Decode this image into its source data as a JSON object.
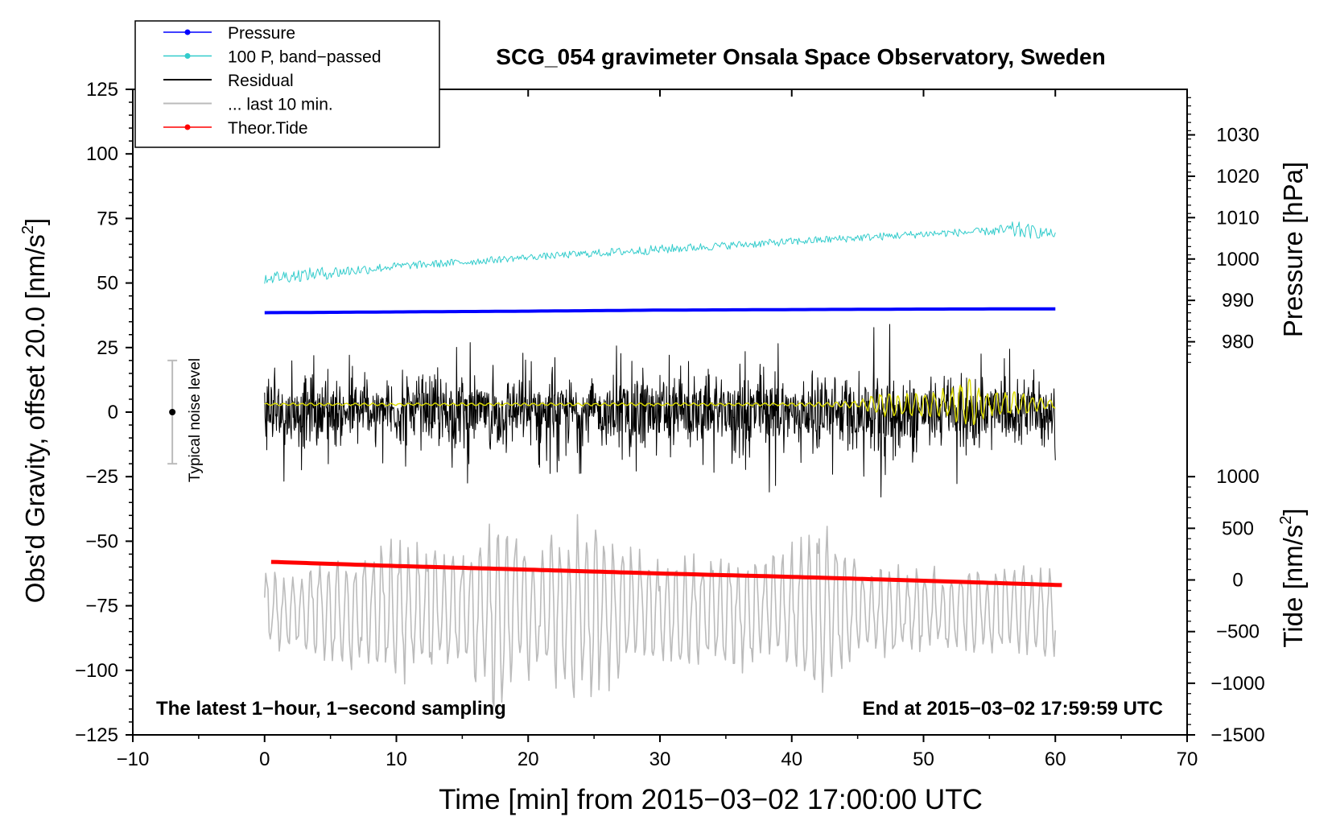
{
  "chart_data": {
    "type": "line",
    "title": "SCG_054 gravimeter Onsala Space Observatory, Sweden",
    "xlabel": "Time [min] from 2015−03−02 17:00:00 UTC",
    "ylabel": "Obs'd Gravity, offset 20.0 [nm/s",
    "ylabel_sup": "2",
    "ylabel_end": "]",
    "right_label_pressure": "Pressure [hPa]",
    "right_label_tide": "Tide [nm/s",
    "right_label_tide_sup": "2",
    "right_label_tide_end": "]",
    "xlim": [
      -10,
      70
    ],
    "ylim": [
      -125,
      125
    ],
    "x_ticks": [
      "−10",
      "0",
      "10",
      "20",
      "30",
      "40",
      "50",
      "60",
      "70"
    ],
    "y_ticks": [
      "125",
      "100",
      "75",
      "50",
      "25",
      "0",
      "−25",
      "−50",
      "−75",
      "−100",
      "−125"
    ],
    "pressure_axis": {
      "ticks": [
        "1030",
        "1020",
        "1010",
        "1000",
        "990",
        "980"
      ],
      "values": [
        1030,
        1020,
        1010,
        1000,
        990,
        980
      ],
      "ref_gravity": [
        0,
        125
      ],
      "ref_hpa": [
        963,
        1041
      ]
    },
    "tide_axis": {
      "ticks": [
        "1000",
        "500",
        "0",
        "−500",
        "−1000",
        "−1500"
      ],
      "values": [
        1000,
        500,
        0,
        -500,
        -1000,
        -1500
      ],
      "ref_gravity": [
        -25,
        -125
      ],
      "ref_nms2": [
        1000,
        -1500
      ]
    },
    "annotation_left": "The latest 1−hour, 1−second sampling",
    "annotation_right": "End at 2015−03−02 17:59:59 UTC",
    "noise_label": "Typical noise level",
    "noise_bar": {
      "x": -7,
      "y_center": 0,
      "y_min": -20,
      "y_max": 20
    },
    "legend": [
      {
        "label": "Pressure",
        "color": "#0000ff",
        "marker": true
      },
      {
        "label": "100 P, band−passed",
        "color": "#33cccc",
        "marker": true
      },
      {
        "label": "Residual",
        "color": "#000000",
        "marker": false
      },
      {
        "label": "... last 10 min.",
        "color": "#bbbbbb",
        "marker": false
      },
      {
        "label": "Theor.Tide",
        "color": "#ff0000",
        "marker": true
      }
    ],
    "series": [
      {
        "name": "Pressure",
        "color": "#0000ff",
        "x": [
          0,
          10,
          20,
          30,
          40,
          50,
          60
        ],
        "y": [
          38.5,
          38.8,
          39.1,
          39.5,
          39.7,
          39.9,
          40.0
        ]
      },
      {
        "name": "100 P, band-passed",
        "color": "#33cccc",
        "x": [
          0,
          5,
          10,
          15,
          20,
          25,
          30,
          35,
          40,
          45,
          50,
          55,
          57,
          60
        ],
        "y": [
          52,
          54,
          56.5,
          58,
          60,
          61.5,
          63,
          64.5,
          66,
          67.5,
          69,
          70,
          70.5,
          69
        ],
        "amplitude": [
          2.5,
          2.5,
          1.5,
          1.5,
          1.2,
          1.5,
          1.8,
          1.5,
          1.5,
          1.5,
          1.5,
          1.5,
          3.5,
          1.5
        ]
      },
      {
        "name": "Residual",
        "color": "#000000",
        "x": [
          0,
          5,
          10,
          15,
          20,
          25,
          28.8,
          30,
          35,
          36.8,
          40,
          45,
          46.3,
          50,
          55,
          60
        ],
        "y": [
          0,
          0,
          0,
          0,
          0,
          0,
          0,
          0,
          0,
          0,
          0,
          0,
          0,
          0,
          0,
          0
        ],
        "amplitude": [
          28,
          25,
          24,
          28,
          24,
          24,
          40,
          28,
          26,
          40,
          26,
          28,
          38,
          28,
          28,
          24
        ]
      },
      {
        "name": "Residual filtered",
        "color": "#dddd00",
        "x": [
          0,
          20,
          40,
          45,
          47,
          50,
          52,
          53.5,
          55,
          57,
          60
        ],
        "y": [
          3,
          3,
          3,
          3,
          3,
          3,
          3,
          3,
          3,
          3,
          3
        ],
        "amplitude": [
          0.5,
          0.6,
          0.6,
          1.5,
          5,
          5,
          7,
          11,
          6,
          5,
          2
        ]
      },
      {
        "name": "... last 10 min.",
        "color": "#bbbbbb",
        "x": [
          0,
          5,
          10,
          15,
          17.5,
          20,
          24,
          30,
          35,
          38.5,
          42.5,
          45,
          50,
          55,
          60
        ],
        "y": [
          -77,
          -77,
          -77,
          -77,
          -77,
          -77,
          -77,
          -77,
          -77,
          -77,
          -77,
          -77,
          -77,
          -77,
          -77
        ],
        "amplitude": [
          15,
          22,
          30,
          26,
          40,
          28,
          38,
          22,
          26,
          22,
          36,
          20,
          18,
          18,
          20
        ]
      },
      {
        "name": "Theor.Tide",
        "color": "#ff0000",
        "x": [
          0.5,
          10,
          20,
          30,
          40,
          50,
          60.5
        ],
        "y": [
          -58,
          -59.6,
          -61,
          -62.5,
          -63.8,
          -65.3,
          -67
        ]
      }
    ]
  }
}
